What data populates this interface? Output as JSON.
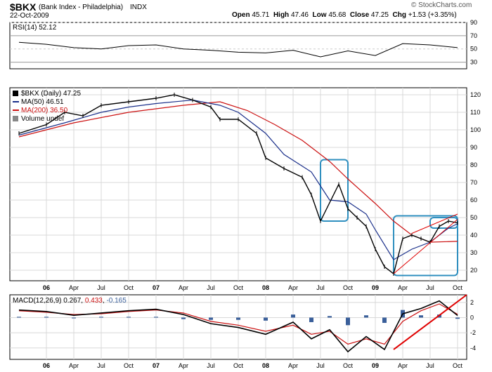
{
  "header": {
    "symbol": "$BKX",
    "name": "(Bank Index - Philadelphia)",
    "exchange": "INDX",
    "date": "22-Oct-2009",
    "watermark": "© StockCharts.com",
    "quote": {
      "open_label": "Open",
      "open": "45.71",
      "high_label": "High",
      "high": "47.46",
      "low_label": "Low",
      "low": "45.68",
      "close_label": "Close",
      "close": "47.25",
      "chg_label": "Chg",
      "chg": "+1.53 (+3.35%)"
    }
  },
  "colors": {
    "price": "#000000",
    "ma50": "#1a2f8a",
    "ma200": "#cc1111",
    "box": "#2f8fbf",
    "trend": "#e00000",
    "macd_signal": "#cc1111",
    "histogram": "#3a5f9a",
    "grid": "#d8d8d8"
  },
  "chart_data": [
    {
      "type": "line",
      "panel": "RSI",
      "legend": "RSI(14) 52.12",
      "x": [
        "2005-10",
        "2006-01",
        "2006-04",
        "2006-07",
        "2006-10",
        "2007-01",
        "2007-04",
        "2007-07",
        "2007-10",
        "2008-01",
        "2008-04",
        "2008-07",
        "2008-10",
        "2009-01",
        "2009-04",
        "2009-07",
        "2009-10"
      ],
      "values": [
        60,
        57,
        52,
        50,
        55,
        56,
        50,
        48,
        45,
        44,
        48,
        38,
        47,
        40,
        58,
        56,
        52
      ],
      "ylim": [
        20,
        90
      ],
      "y_ticks": [
        90,
        70,
        50,
        30
      ],
      "reference_lines": [
        70,
        30
      ]
    },
    {
      "type": "line",
      "panel": "Price",
      "series": [
        {
          "name": "$BKX (Daily) 47.25",
          "x": [
            "2005-10",
            "2006-01",
            "2006-03",
            "2006-05",
            "2006-07",
            "2006-10",
            "2007-01",
            "2007-03",
            "2007-05",
            "2007-07",
            "2007-08",
            "2007-10",
            "2007-12",
            "2008-01",
            "2008-03",
            "2008-05",
            "2008-06",
            "2008-07",
            "2008-09",
            "2008-10",
            "2008-11",
            "2008-12",
            "2009-01",
            "2009-02",
            "2009-03",
            "2009-04",
            "2009-05",
            "2009-06",
            "2009-07",
            "2009-08",
            "2009-09",
            "2009-10"
          ],
          "values": [
            98,
            103,
            110,
            108,
            114,
            116,
            118,
            120,
            117,
            113,
            106,
            106,
            98,
            84,
            78,
            73,
            63,
            48,
            69,
            55,
            50,
            45,
            32,
            22,
            18,
            38,
            40,
            38,
            36,
            45,
            48,
            47
          ]
        },
        {
          "name": "MA(50) 46.51",
          "x": [
            "2005-10",
            "2006-03",
            "2006-07",
            "2006-10",
            "2007-01",
            "2007-05",
            "2007-08",
            "2007-10",
            "2008-01",
            "2008-03",
            "2008-06",
            "2008-08",
            "2008-10",
            "2008-12",
            "2009-01",
            "2009-03",
            "2009-05",
            "2009-07",
            "2009-09",
            "2009-10"
          ],
          "values": [
            97,
            104,
            110,
            113,
            115,
            117,
            114,
            110,
            98,
            86,
            76,
            60,
            59,
            52,
            43,
            26,
            32,
            36,
            44,
            46.5
          ]
        },
        {
          "name": "MA(200) 36.50",
          "x": [
            "2005-10",
            "2006-04",
            "2006-10",
            "2007-04",
            "2007-08",
            "2007-11",
            "2008-02",
            "2008-05",
            "2008-08",
            "2008-10",
            "2009-01",
            "2009-03",
            "2009-05",
            "2009-07",
            "2009-09",
            "2009-10"
          ],
          "values": [
            96,
            104,
            110,
            114,
            116,
            111,
            103,
            94,
            82,
            72,
            58,
            48,
            40,
            36,
            36.3,
            36.5
          ]
        }
      ],
      "ylim": [
        14,
        124
      ],
      "y_ticks": [
        120,
        110,
        100,
        90,
        80,
        70,
        60,
        50,
        40,
        30,
        20
      ],
      "annotation_boxes": [
        {
          "x_range": [
            "2008-07",
            "2008-10"
          ],
          "y_range": [
            48,
            83
          ]
        },
        {
          "x_range": [
            "2009-03",
            "2009-10"
          ],
          "y_range": [
            17,
            51
          ]
        },
        {
          "x_range": [
            "2009-07",
            "2009-10"
          ],
          "y_range": [
            44,
            50
          ]
        }
      ],
      "trend_lines": [
        {
          "from": [
            "2009-03",
            18
          ],
          "to": [
            "2009-10",
            49
          ]
        },
        {
          "from": [
            "2009-05",
            41
          ],
          "to": [
            "2009-10",
            52
          ]
        }
      ]
    },
    {
      "type": "line",
      "panel": "MACD",
      "legend": {
        "label": "MACD(12,26,9)",
        "macd": "0.267",
        "signal": "0.433",
        "histogram": "-0.165"
      },
      "x": [
        "2005-10",
        "2006-01",
        "2006-04",
        "2006-07",
        "2006-10",
        "2007-01",
        "2007-04",
        "2007-07",
        "2007-10",
        "2008-01",
        "2008-04",
        "2008-06",
        "2008-08",
        "2008-10",
        "2008-12",
        "2009-02",
        "2009-04",
        "2009-06",
        "2009-08",
        "2009-10"
      ],
      "series": [
        {
          "name": "MACD",
          "values": [
            1.0,
            0.8,
            0.3,
            0.6,
            0.9,
            1.1,
            0.4,
            -0.8,
            -1.3,
            -2.2,
            -0.6,
            -2.8,
            -1.6,
            -4.5,
            -2.5,
            -4.2,
            0.5,
            1.2,
            2.2,
            0.27
          ]
        },
        {
          "name": "Signal",
          "values": [
            0.9,
            0.7,
            0.4,
            0.5,
            0.8,
            1.0,
            0.6,
            -0.5,
            -1.0,
            -1.8,
            -1.0,
            -2.2,
            -1.8,
            -3.5,
            -2.8,
            -3.5,
            -0.5,
            0.9,
            1.8,
            0.43
          ]
        }
      ],
      "ylim": [
        -5.5,
        3
      ],
      "y_ticks": [
        2,
        0,
        -2,
        -4
      ],
      "trend_lines": [
        {
          "from": [
            "2009-03",
            -4.2
          ],
          "to": [
            "2009-11",
            3.0
          ]
        }
      ]
    }
  ],
  "x_axis": {
    "tick_labels": [
      "06",
      "Apr",
      "Jul",
      "Oct",
      "07",
      "Apr",
      "Jul",
      "Oct",
      "08",
      "Apr",
      "Jul",
      "Oct",
      "09",
      "Apr",
      "Jul",
      "Oct"
    ],
    "tick_dates": [
      "2006-01",
      "2006-04",
      "2006-07",
      "2006-10",
      "2007-01",
      "2007-04",
      "2007-07",
      "2007-10",
      "2008-01",
      "2008-04",
      "2008-07",
      "2008-10",
      "2009-01",
      "2009-04",
      "2009-07",
      "2009-10"
    ],
    "year_labels": [
      "06",
      "07",
      "08",
      "09"
    ]
  },
  "price_legend": {
    "symbol_line": "$BKX (Daily) 47.25",
    "ma50": "MA(50) 46.51",
    "ma200": "MA(200) 36.50",
    "volume": "Volume undef"
  }
}
